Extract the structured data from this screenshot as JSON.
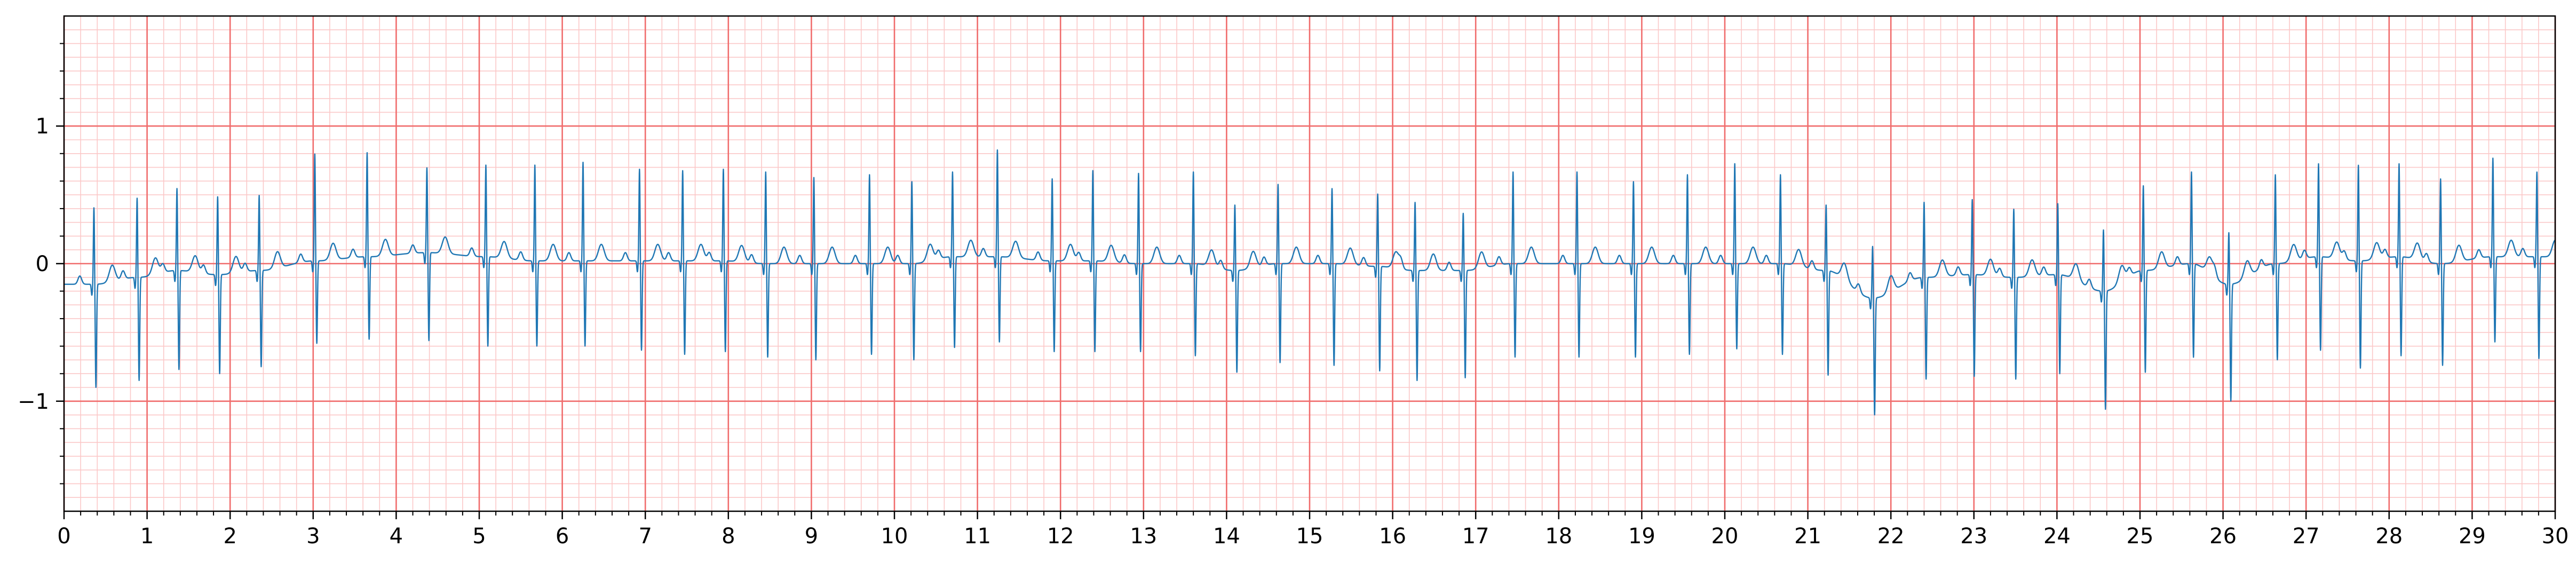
{
  "chart_data": {
    "type": "line",
    "title": "",
    "xlabel": "",
    "ylabel": "",
    "xlim": [
      0,
      30
    ],
    "ylim": [
      -1.8,
      1.8
    ],
    "x_ticks": [
      "0",
      "1",
      "2",
      "3",
      "4",
      "5",
      "6",
      "7",
      "8",
      "9",
      "10",
      "11",
      "12",
      "13",
      "14",
      "15",
      "16",
      "17",
      "18",
      "19",
      "20",
      "21",
      "22",
      "23",
      "24",
      "25",
      "26",
      "27",
      "28",
      "29",
      "30"
    ],
    "y_ticks": [
      {
        "value": 1,
        "label": "1"
      },
      {
        "value": 0,
        "label": "0"
      },
      {
        "value": -1,
        "label": "−1"
      }
    ],
    "grid": {
      "major": true,
      "minor": true,
      "major_x_step": 1,
      "minor_x_step": 0.2,
      "major_y_step": 1,
      "minor_y_step": 0.1,
      "major_color": "#f06c6c",
      "minor_color": "#fbc8c8"
    },
    "background": "#ffffff",
    "series": [
      {
        "color": "#1f77b4",
        "beats": [
          {
            "t": 0.36,
            "r": 0.56,
            "s": -0.75,
            "base": -0.15
          },
          {
            "t": 0.88,
            "r": 0.58,
            "s": -0.75,
            "base": -0.1
          },
          {
            "t": 1.36,
            "r": 0.6,
            "s": -0.72,
            "base": -0.05
          },
          {
            "t": 1.85,
            "r": 0.57,
            "s": -0.72,
            "base": -0.08
          },
          {
            "t": 2.35,
            "r": 0.55,
            "s": -0.7,
            "base": -0.05
          },
          {
            "t": 3.02,
            "r": 0.78,
            "s": -0.6,
            "base": 0.02
          },
          {
            "t": 3.65,
            "r": 0.76,
            "s": -0.6,
            "base": 0.05
          },
          {
            "t": 4.37,
            "r": 0.62,
            "s": -0.64,
            "base": 0.08
          },
          {
            "t": 5.08,
            "r": 0.67,
            "s": -0.65,
            "base": 0.05
          },
          {
            "t": 5.67,
            "r": 0.7,
            "s": -0.62,
            "base": 0.02
          },
          {
            "t": 6.25,
            "r": 0.72,
            "s": -0.62,
            "base": 0.02
          },
          {
            "t": 6.93,
            "r": 0.67,
            "s": -0.65,
            "base": 0.02
          },
          {
            "t": 7.45,
            "r": 0.66,
            "s": -0.68,
            "base": 0.02
          },
          {
            "t": 7.94,
            "r": 0.67,
            "s": -0.66,
            "base": 0.02
          },
          {
            "t": 8.45,
            "r": 0.67,
            "s": -0.68,
            "base": 0.0
          },
          {
            "t": 9.03,
            "r": 0.63,
            "s": -0.7,
            "base": 0.0
          },
          {
            "t": 9.7,
            "r": 0.65,
            "s": -0.66,
            "base": 0.0
          },
          {
            "t": 10.21,
            "r": 0.6,
            "s": -0.7,
            "base": 0.0
          },
          {
            "t": 10.7,
            "r": 0.62,
            "s": -0.66,
            "base": 0.05
          },
          {
            "t": 11.24,
            "r": 0.78,
            "s": -0.62,
            "base": 0.05
          },
          {
            "t": 11.9,
            "r": 0.6,
            "s": -0.66,
            "base": 0.02
          },
          {
            "t": 12.39,
            "r": 0.66,
            "s": -0.66,
            "base": 0.02
          },
          {
            "t": 12.94,
            "r": 0.66,
            "s": -0.64,
            "base": 0.0
          },
          {
            "t": 13.6,
            "r": 0.67,
            "s": -0.67,
            "base": 0.0
          },
          {
            "t": 14.1,
            "r": 0.48,
            "s": -0.74,
            "base": -0.05
          },
          {
            "t": 14.62,
            "r": 0.58,
            "s": -0.72,
            "base": 0.0
          },
          {
            "t": 15.27,
            "r": 0.55,
            "s": -0.74,
            "base": 0.0
          },
          {
            "t": 15.82,
            "r": 0.53,
            "s": -0.76,
            "base": -0.02
          },
          {
            "t": 16.27,
            "r": 0.5,
            "s": -0.8,
            "base": -0.05
          },
          {
            "t": 16.85,
            "r": 0.42,
            "s": -0.78,
            "base": -0.05
          },
          {
            "t": 17.45,
            "r": 0.67,
            "s": -0.68,
            "base": 0.0
          },
          {
            "t": 18.22,
            "r": 0.67,
            "s": -0.68,
            "base": 0.0
          },
          {
            "t": 18.9,
            "r": 0.6,
            "s": -0.68,
            "base": 0.0
          },
          {
            "t": 19.55,
            "r": 0.65,
            "s": -0.66,
            "base": 0.0
          },
          {
            "t": 20.12,
            "r": 0.73,
            "s": -0.62,
            "base": 0.0
          },
          {
            "t": 20.67,
            "r": 0.65,
            "s": -0.66,
            "base": 0.0
          },
          {
            "t": 21.22,
            "r": 0.48,
            "s": -0.76,
            "base": -0.05
          },
          {
            "t": 21.78,
            "r": 0.38,
            "s": -0.85,
            "base": -0.25
          },
          {
            "t": 22.4,
            "r": 0.55,
            "s": -0.74,
            "base": -0.1
          },
          {
            "t": 22.98,
            "r": 0.55,
            "s": -0.74,
            "base": -0.08
          },
          {
            "t": 23.48,
            "r": 0.5,
            "s": -0.74,
            "base": -0.1
          },
          {
            "t": 24.01,
            "r": 0.52,
            "s": -0.72,
            "base": -0.08
          },
          {
            "t": 24.56,
            "r": 0.45,
            "s": -0.86,
            "base": -0.2
          },
          {
            "t": 25.04,
            "r": 0.62,
            "s": -0.74,
            "base": -0.05
          },
          {
            "t": 25.62,
            "r": 0.67,
            "s": -0.68,
            "base": 0.0
          },
          {
            "t": 26.07,
            "r": 0.38,
            "s": -0.85,
            "base": -0.15
          },
          {
            "t": 26.63,
            "r": 0.65,
            "s": -0.7,
            "base": 0.0
          },
          {
            "t": 27.15,
            "r": 0.68,
            "s": -0.68,
            "base": 0.05
          },
          {
            "t": 27.63,
            "r": 0.7,
            "s": -0.78,
            "base": 0.02
          },
          {
            "t": 28.12,
            "r": 0.68,
            "s": -0.72,
            "base": 0.05
          },
          {
            "t": 28.62,
            "r": 0.62,
            "s": -0.74,
            "base": 0.0
          },
          {
            "t": 29.25,
            "r": 0.72,
            "s": -0.62,
            "base": 0.05
          },
          {
            "t": 29.78,
            "r": 0.62,
            "s": -0.74,
            "base": 0.05
          }
        ]
      }
    ]
  }
}
